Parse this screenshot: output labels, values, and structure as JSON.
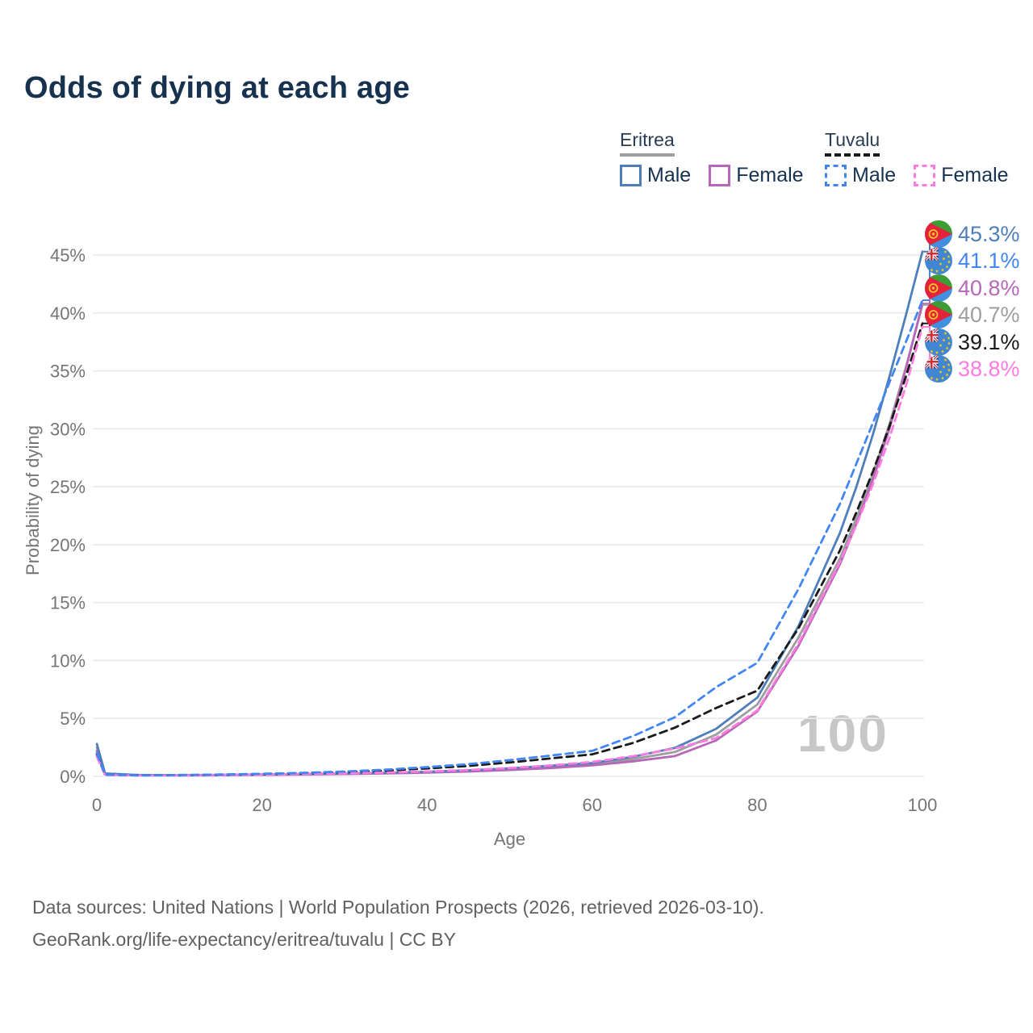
{
  "title": "Odds of dying at each age",
  "legend": {
    "groups": [
      {
        "country": "Eritrea",
        "line_style": "solid",
        "line_color": "#9e9e9e",
        "items": [
          {
            "label": "Male",
            "color": "#4f7fba"
          },
          {
            "label": "Female",
            "color": "#b667b9"
          }
        ]
      },
      {
        "country": "Tuvalu",
        "line_style": "dashed",
        "line_color": "#1a1a1a",
        "items": [
          {
            "label": "Male",
            "color": "#4285f4"
          },
          {
            "label": "Female",
            "color": "#ff7be0"
          }
        ]
      }
    ]
  },
  "chart_data": {
    "type": "line",
    "title": "Odds of dying at each age",
    "xlabel": "Age",
    "ylabel": "Probability of dying",
    "xlim": [
      0,
      100
    ],
    "ylim": [
      0,
      45
    ],
    "grid": "horizontal",
    "legend_position": "top-right",
    "watermark": "100",
    "xticks": [
      {
        "v": 0,
        "label": "0"
      },
      {
        "v": 20,
        "label": "20"
      },
      {
        "v": 40,
        "label": "40"
      },
      {
        "v": 60,
        "label": "60"
      },
      {
        "v": 80,
        "label": "80"
      },
      {
        "v": 100,
        "label": "100"
      }
    ],
    "yticks": [
      {
        "v": 0,
        "label": "0%"
      },
      {
        "v": 5,
        "label": "5%"
      },
      {
        "v": 10,
        "label": "10%"
      },
      {
        "v": 15,
        "label": "15%"
      },
      {
        "v": 20,
        "label": "20%"
      },
      {
        "v": 25,
        "label": "25%"
      },
      {
        "v": 30,
        "label": "30%"
      },
      {
        "v": 35,
        "label": "35%"
      },
      {
        "v": 40,
        "label": "40%"
      },
      {
        "v": 45,
        "label": "45%"
      }
    ],
    "x": [
      0,
      1,
      5,
      10,
      15,
      20,
      25,
      30,
      35,
      40,
      45,
      50,
      55,
      60,
      65,
      70,
      75,
      80,
      85,
      90,
      92,
      94,
      96,
      98,
      100
    ],
    "series": [
      {
        "name": "Eritrea Total",
        "flag": "eritrea",
        "color": "#9e9e9e",
        "dash": false,
        "values": [
          2.5,
          0.22,
          0.11,
          0.09,
          0.11,
          0.14,
          0.18,
          0.22,
          0.28,
          0.36,
          0.47,
          0.62,
          0.82,
          1.05,
          1.5,
          2.1,
          3.6,
          6.2,
          12.0,
          18.8,
          22.3,
          26.1,
          30.4,
          35.3,
          40.7
        ]
      },
      {
        "name": "Eritrea Female",
        "flag": "eritrea",
        "color": "#b667b9",
        "dash": false,
        "values": [
          2.2,
          0.2,
          0.1,
          0.08,
          0.1,
          0.13,
          0.16,
          0.2,
          0.25,
          0.32,
          0.42,
          0.55,
          0.72,
          0.95,
          1.3,
          1.75,
          3.1,
          5.6,
          11.3,
          18.3,
          21.8,
          25.6,
          30.0,
          35.2,
          40.8
        ]
      },
      {
        "name": "Eritrea Male",
        "flag": "eritrea",
        "color": "#4f7fba",
        "dash": false,
        "values": [
          2.8,
          0.25,
          0.12,
          0.1,
          0.12,
          0.16,
          0.2,
          0.25,
          0.31,
          0.4,
          0.52,
          0.7,
          0.92,
          1.15,
          1.7,
          2.45,
          4.1,
          6.8,
          13.0,
          21.0,
          25.0,
          29.5,
          34.5,
          39.8,
          45.3
        ]
      },
      {
        "name": "Tuvalu Total",
        "flag": "tuvalu",
        "color": "#1a1a1a",
        "dash": true,
        "values": [
          1.9,
          0.13,
          0.09,
          0.1,
          0.14,
          0.19,
          0.26,
          0.36,
          0.5,
          0.68,
          0.9,
          1.2,
          1.55,
          1.9,
          2.9,
          4.2,
          5.9,
          7.4,
          12.8,
          19.5,
          22.8,
          26.3,
          30.2,
          34.5,
          39.1
        ]
      },
      {
        "name": "Tuvalu Female",
        "flag": "tuvalu",
        "color": "#ff7be0",
        "dash": true,
        "values": [
          1.7,
          0.12,
          0.08,
          0.09,
          0.12,
          0.16,
          0.21,
          0.26,
          0.33,
          0.42,
          0.55,
          0.72,
          0.95,
          1.25,
          1.75,
          2.4,
          3.3,
          5.7,
          11.5,
          18.5,
          21.7,
          25.2,
          29.2,
          33.7,
          38.8
        ]
      },
      {
        "name": "Tuvalu Male",
        "flag": "tuvalu",
        "color": "#4285f4",
        "dash": true,
        "values": [
          2.0,
          0.15,
          0.1,
          0.12,
          0.16,
          0.22,
          0.3,
          0.42,
          0.58,
          0.8,
          1.05,
          1.4,
          1.8,
          2.2,
          3.5,
          5.1,
          7.7,
          9.8,
          16.2,
          23.5,
          27.0,
          30.5,
          34.0,
          37.5,
          41.1
        ]
      }
    ],
    "end_labels": [
      {
        "text": "45.3%",
        "series": 2
      },
      {
        "text": "41.1%",
        "series": 5
      },
      {
        "text": "40.8%",
        "series": 1
      },
      {
        "text": "40.7%",
        "series": 0
      },
      {
        "text": "39.1%",
        "series": 3
      },
      {
        "text": "38.8%",
        "series": 4
      }
    ]
  },
  "footer": {
    "line1": "Data sources: United Nations | World Population Prospects (2026, retrieved 2026-03-10).",
    "line2": "GeoRank.org/life-expectancy/eritrea/tuvalu | CC BY"
  }
}
